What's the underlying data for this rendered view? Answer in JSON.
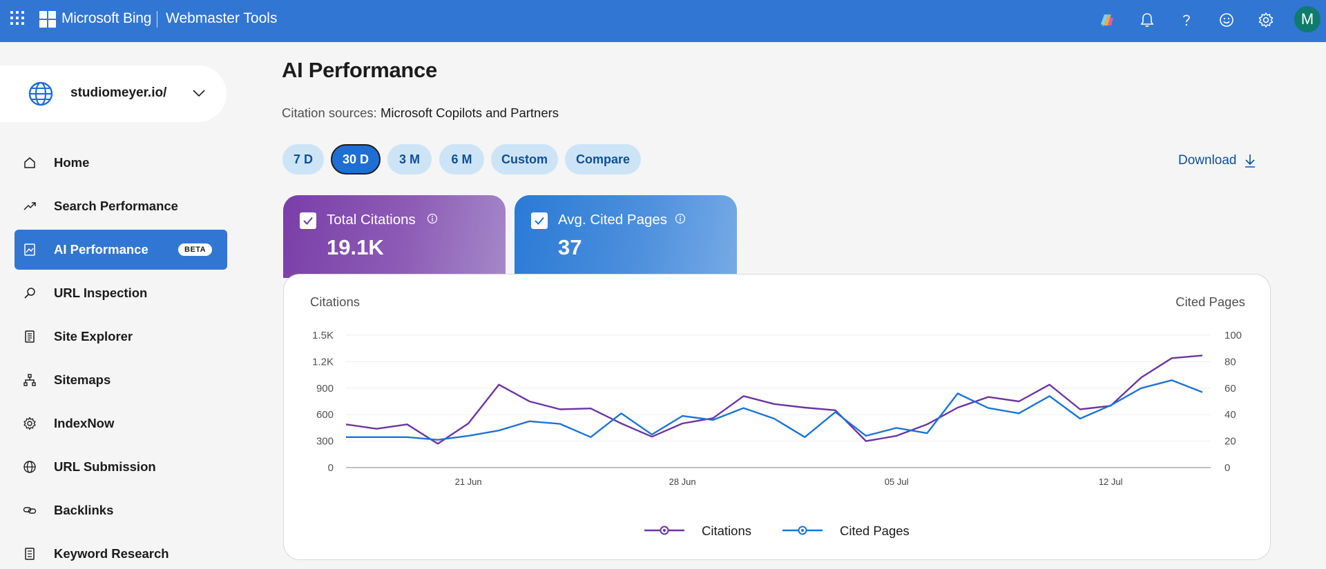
{
  "header": {
    "brand": "Microsoft Bing",
    "product": "Webmaster Tools",
    "avatar_initial": "M",
    "icons": [
      "copilot-icon",
      "bell-icon",
      "help-icon",
      "feedback-smiley-icon",
      "gear-icon"
    ]
  },
  "sidebar": {
    "site": "studiomeyer.io/",
    "items": [
      {
        "label": "Home",
        "icon": "home-icon"
      },
      {
        "label": "Search Performance",
        "icon": "trend-icon"
      },
      {
        "label": "AI Performance",
        "icon": "chart-image-icon",
        "badge": "BETA",
        "active": true
      },
      {
        "label": "URL Inspection",
        "icon": "magnifier-icon"
      },
      {
        "label": "Site Explorer",
        "icon": "document-list-icon"
      },
      {
        "label": "Sitemaps",
        "icon": "sitemap-icon"
      },
      {
        "label": "IndexNow",
        "icon": "gear-outline-icon"
      },
      {
        "label": "URL Submission",
        "icon": "globe-icon"
      },
      {
        "label": "Backlinks",
        "icon": "link-icon"
      },
      {
        "label": "Keyword Research",
        "icon": "document-icon"
      }
    ]
  },
  "main": {
    "title": "AI Performance",
    "citation_sources_label": "Citation sources:",
    "citation_sources_value": "Microsoft Copilots and Partners",
    "ranges": [
      {
        "label": "7 D",
        "active": false
      },
      {
        "label": "30 D",
        "active": true
      },
      {
        "label": "3 M",
        "active": false
      },
      {
        "label": "6 M",
        "active": false
      },
      {
        "label": "Custom",
        "active": false
      },
      {
        "label": "Compare",
        "active": false
      }
    ],
    "download_label": "Download",
    "metrics": [
      {
        "label": "Total Citations",
        "value": "19.1K",
        "checked": true
      },
      {
        "label": "Avg. Cited Pages",
        "value": "37",
        "checked": true
      }
    ],
    "colors": {
      "citations": "#6b35a0",
      "cited_pages": "#1b74d4"
    }
  },
  "chart_data": {
    "type": "line",
    "y_left_label": "Citations",
    "y_right_label": "Cited Pages",
    "y_left_ticks": [
      "0",
      "300",
      "600",
      "900",
      "1.2K",
      "1.5K"
    ],
    "y_right_ticks": [
      "0",
      "20",
      "40",
      "60",
      "80",
      "100"
    ],
    "y_left_range": [
      0,
      1500
    ],
    "y_right_range": [
      0,
      100
    ],
    "x_tick_labels": [
      "21 Jun",
      "28 Jun",
      "05 Jul",
      "12 Jul"
    ],
    "x_tick_indices": [
      4,
      11,
      18,
      25
    ],
    "legend": [
      "Citations",
      "Cited Pages"
    ],
    "series": [
      {
        "name": "Citations",
        "axis": "left",
        "values": [
          490,
          440,
          490,
          270,
          500,
          940,
          750,
          660,
          670,
          500,
          350,
          500,
          560,
          810,
          720,
          680,
          650,
          300,
          360,
          490,
          680,
          800,
          750,
          940,
          660,
          700,
          1020,
          1240,
          1270
        ]
      },
      {
        "name": "Cited Pages",
        "axis": "right",
        "values": [
          23,
          23,
          23,
          21,
          24,
          28,
          35,
          33,
          23,
          41,
          25,
          39,
          36,
          45,
          37,
          23,
          42,
          24,
          30,
          26,
          56,
          45,
          41,
          54,
          37,
          47,
          60,
          66,
          57
        ]
      }
    ]
  }
}
